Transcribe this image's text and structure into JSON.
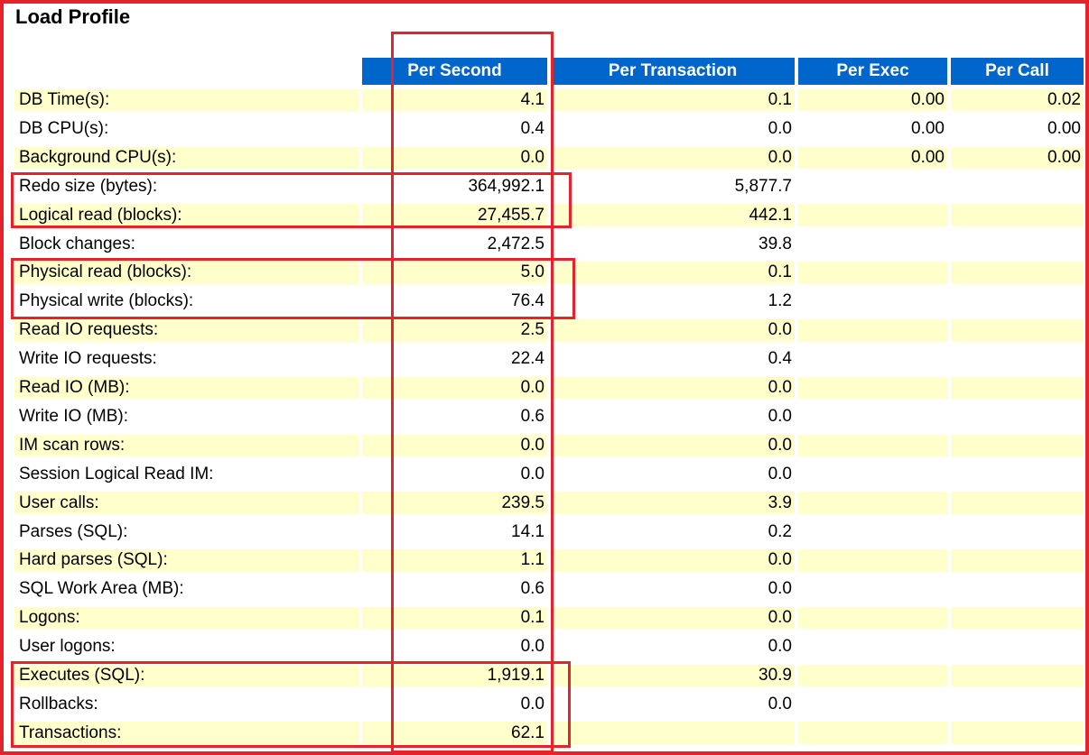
{
  "title": "Load Profile",
  "columns": [
    "Per Second",
    "Per Transaction",
    "Per Exec",
    "Per Call"
  ],
  "rows": [
    {
      "label": "DB Time(s):",
      "per_second": "4.1",
      "per_transaction": "0.1",
      "per_exec": "0.00",
      "per_call": "0.02"
    },
    {
      "label": "DB CPU(s):",
      "per_second": "0.4",
      "per_transaction": "0.0",
      "per_exec": "0.00",
      "per_call": "0.00"
    },
    {
      "label": "Background CPU(s):",
      "per_second": "0.0",
      "per_transaction": "0.0",
      "per_exec": "0.00",
      "per_call": "0.00"
    },
    {
      "label": "Redo size (bytes):",
      "per_second": "364,992.1",
      "per_transaction": "5,877.7",
      "per_exec": "",
      "per_call": ""
    },
    {
      "label": "Logical read (blocks):",
      "per_second": "27,455.7",
      "per_transaction": "442.1",
      "per_exec": "",
      "per_call": ""
    },
    {
      "label": "Block changes:",
      "per_second": "2,472.5",
      "per_transaction": "39.8",
      "per_exec": "",
      "per_call": ""
    },
    {
      "label": "Physical read (blocks):",
      "per_second": "5.0",
      "per_transaction": "0.1",
      "per_exec": "",
      "per_call": ""
    },
    {
      "label": "Physical write (blocks):",
      "per_second": "76.4",
      "per_transaction": "1.2",
      "per_exec": "",
      "per_call": ""
    },
    {
      "label": "Read IO requests:",
      "per_second": "2.5",
      "per_transaction": "0.0",
      "per_exec": "",
      "per_call": ""
    },
    {
      "label": "Write IO requests:",
      "per_second": "22.4",
      "per_transaction": "0.4",
      "per_exec": "",
      "per_call": ""
    },
    {
      "label": "Read IO (MB):",
      "per_second": "0.0",
      "per_transaction": "0.0",
      "per_exec": "",
      "per_call": ""
    },
    {
      "label": "Write IO (MB):",
      "per_second": "0.6",
      "per_transaction": "0.0",
      "per_exec": "",
      "per_call": ""
    },
    {
      "label": "IM scan rows:",
      "per_second": "0.0",
      "per_transaction": "0.0",
      "per_exec": "",
      "per_call": ""
    },
    {
      "label": "Session Logical Read IM:",
      "per_second": "0.0",
      "per_transaction": "0.0",
      "per_exec": "",
      "per_call": ""
    },
    {
      "label": "User calls:",
      "per_second": "239.5",
      "per_transaction": "3.9",
      "per_exec": "",
      "per_call": ""
    },
    {
      "label": "Parses (SQL):",
      "per_second": "14.1",
      "per_transaction": "0.2",
      "per_exec": "",
      "per_call": ""
    },
    {
      "label": "Hard parses (SQL):",
      "per_second": "1.1",
      "per_transaction": "0.0",
      "per_exec": "",
      "per_call": ""
    },
    {
      "label": "SQL Work Area (MB):",
      "per_second": "0.6",
      "per_transaction": "0.0",
      "per_exec": "",
      "per_call": ""
    },
    {
      "label": "Logons:",
      "per_second": "0.1",
      "per_transaction": "0.0",
      "per_exec": "",
      "per_call": ""
    },
    {
      "label": "User logons:",
      "per_second": "0.0",
      "per_transaction": "0.0",
      "per_exec": "",
      "per_call": ""
    },
    {
      "label": "Executes (SQL):",
      "per_second": "1,919.1",
      "per_transaction": "30.9",
      "per_exec": "",
      "per_call": ""
    },
    {
      "label": "Rollbacks:",
      "per_second": "0.0",
      "per_transaction": "0.0",
      "per_exec": "",
      "per_call": ""
    },
    {
      "label": "Transactions:",
      "per_second": "62.1",
      "per_transaction": "",
      "per_exec": "",
      "per_call": ""
    }
  ],
  "colors": {
    "header_bg": "#0066cc",
    "header_text": "#ffffff",
    "row_alt_bg": "#ffffcc",
    "highlight": "#e8222b"
  }
}
